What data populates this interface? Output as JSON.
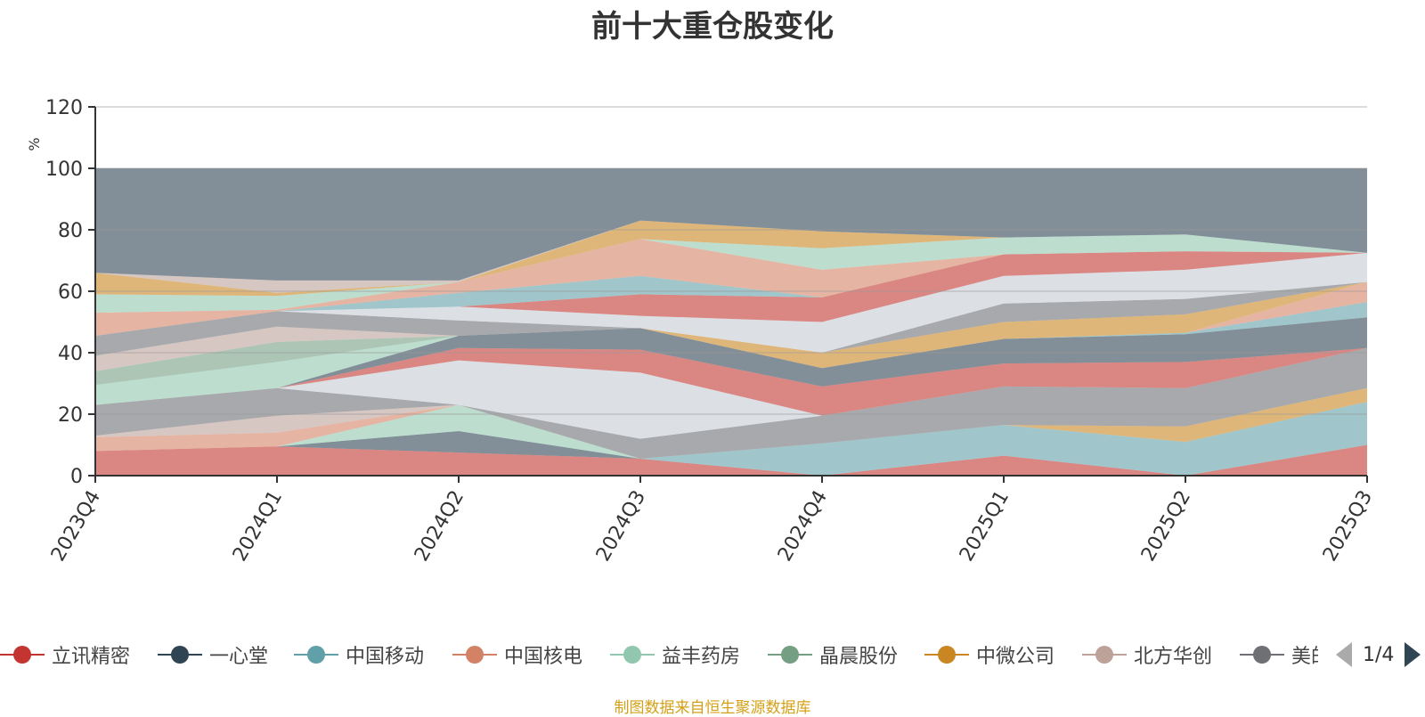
{
  "chart_data": {
    "type": "area",
    "title": "前十大重仓股变化",
    "ylabel": "%",
    "ylim": [
      0,
      120
    ],
    "yticks": [
      0,
      20,
      40,
      60,
      80,
      100,
      120
    ],
    "x": [
      "2023Q4",
      "2024Q1",
      "2024Q2",
      "2024Q3",
      "2024Q4",
      "2025Q1",
      "2025Q2",
      "2025Q3"
    ],
    "stacked": true,
    "grid": true,
    "legend_position": "bottom",
    "bands": [
      {
        "color": "#c23531",
        "bounds": [
          [
            0,
            8
          ],
          [
            0,
            9.5
          ],
          [
            0,
            7.5
          ],
          [
            0,
            5.5
          ],
          [
            0,
            0
          ],
          [
            0,
            6.5
          ],
          [
            0,
            0
          ],
          [
            0,
            10
          ]
        ]
      },
      {
        "color": "#61a0a8",
        "bounds": [
          [
            8,
            8
          ],
          [
            9.5,
            9.5
          ],
          [
            7.5,
            7.5
          ],
          [
            5.5,
            5.5
          ],
          [
            0,
            10.5
          ],
          [
            6.5,
            16.5
          ],
          [
            0,
            11
          ],
          [
            10,
            24
          ]
        ]
      },
      {
        "color": "#ca8622",
        "bounds": [
          [
            8,
            8
          ],
          [
            9.5,
            9.5
          ],
          [
            7.5,
            7.5
          ],
          [
            5.5,
            5.5
          ],
          [
            10.5,
            10.5
          ],
          [
            16.5,
            16.5
          ],
          [
            11,
            16
          ],
          [
            24,
            28.5
          ]
        ]
      },
      {
        "color": "#2f4554",
        "bounds": [
          [
            8,
            8
          ],
          [
            9.5,
            9.5
          ],
          [
            7.5,
            14.5
          ],
          [
            5.5,
            5.5
          ],
          [
            10.5,
            10.5
          ],
          [
            16.5,
            16.5
          ],
          [
            16,
            16
          ],
          [
            28.5,
            28.5
          ]
        ]
      },
      {
        "color": "#91c7ae",
        "bounds": [
          [
            8,
            8
          ],
          [
            9.5,
            9.5
          ],
          [
            14.5,
            23
          ],
          [
            5.5,
            5.5
          ],
          [
            10.5,
            10.5
          ],
          [
            16.5,
            16.5
          ],
          [
            16,
            16
          ],
          [
            28.5,
            28.5
          ]
        ]
      },
      {
        "color": "#d48265",
        "bounds": [
          [
            8,
            12.5
          ],
          [
            9.5,
            14
          ],
          [
            23,
            23
          ],
          [
            5.5,
            5.5
          ],
          [
            10.5,
            10.5
          ],
          [
            16.5,
            16.5
          ],
          [
            16,
            16
          ],
          [
            28.5,
            28.5
          ]
        ]
      },
      {
        "color": "#bda29a",
        "bounds": [
          [
            12.5,
            13
          ],
          [
            14,
            19.5
          ],
          [
            23,
            23
          ],
          [
            5.5,
            5.5
          ],
          [
            10.5,
            10.5
          ],
          [
            16.5,
            16.5
          ],
          [
            16,
            16
          ],
          [
            28.5,
            28.5
          ]
        ]
      },
      {
        "color": "#6e7074",
        "bounds": [
          [
            13,
            23
          ],
          [
            19.5,
            28.5
          ],
          [
            23,
            23
          ],
          [
            5.5,
            12
          ],
          [
            10.5,
            19.5
          ],
          [
            16.5,
            29
          ],
          [
            16,
            28.5
          ],
          [
            28.5,
            41.5
          ]
        ]
      },
      {
        "color": "#c4ccd3",
        "bounds": [
          [
            23,
            23
          ],
          [
            28.5,
            28.5
          ],
          [
            23,
            37.5
          ],
          [
            12,
            33.5
          ],
          [
            19.5,
            19.5
          ],
          [
            29,
            29
          ],
          [
            28.5,
            28.5
          ],
          [
            41.5,
            41.5
          ]
        ]
      },
      {
        "color": "#c23531",
        "bounds": [
          [
            23,
            23
          ],
          [
            28.5,
            28.5
          ],
          [
            37.5,
            41.5
          ],
          [
            33.5,
            41
          ],
          [
            19.5,
            29
          ],
          [
            29,
            36.5
          ],
          [
            28.5,
            37
          ],
          [
            41.5,
            41.5
          ]
        ]
      },
      {
        "color": "#2f4554",
        "bounds": [
          [
            23,
            23
          ],
          [
            28.5,
            28.5
          ],
          [
            41.5,
            45.5
          ],
          [
            41,
            48
          ],
          [
            29,
            35
          ],
          [
            36.5,
            44.5
          ],
          [
            37,
            46
          ],
          [
            41.5,
            51.5
          ]
        ]
      },
      {
        "color": "#61a0a8",
        "bounds": [
          [
            23,
            23
          ],
          [
            28.5,
            28.5
          ],
          [
            45.5,
            45.5
          ],
          [
            48,
            48
          ],
          [
            35,
            35
          ],
          [
            44.5,
            44.5
          ],
          [
            46,
            46.5
          ],
          [
            51.5,
            56.5
          ]
        ]
      },
      {
        "color": "#d48265",
        "bounds": [
          [
            23,
            23
          ],
          [
            28.5,
            28.5
          ],
          [
            45.5,
            45.5
          ],
          [
            48,
            48
          ],
          [
            35,
            35
          ],
          [
            44.5,
            44.5
          ],
          [
            46.5,
            46.5
          ],
          [
            56.5,
            63
          ]
        ]
      },
      {
        "color": "#91c7ae",
        "bounds": [
          [
            23,
            29.5
          ],
          [
            28.5,
            37
          ],
          [
            45.5,
            45.5
          ],
          [
            48,
            48
          ],
          [
            35,
            35
          ],
          [
            44.5,
            44.5
          ],
          [
            46.5,
            46.5
          ],
          [
            63,
            63
          ]
        ]
      },
      {
        "color": "#749f83",
        "bounds": [
          [
            29.5,
            34
          ],
          [
            37,
            43.5
          ],
          [
            45.5,
            45.5
          ],
          [
            48,
            48
          ],
          [
            35,
            35
          ],
          [
            44.5,
            44.5
          ],
          [
            46.5,
            46.5
          ],
          [
            63,
            63
          ]
        ]
      },
      {
        "color": "#ca8622",
        "bounds": [
          [
            34,
            34
          ],
          [
            43.5,
            43.5
          ],
          [
            45.5,
            45.5
          ],
          [
            48,
            48
          ],
          [
            35,
            40
          ],
          [
            44.5,
            50
          ],
          [
            46.5,
            52.5
          ],
          [
            63,
            63
          ]
        ]
      },
      {
        "color": "#bda29a",
        "bounds": [
          [
            34,
            39
          ],
          [
            43.5,
            48.5
          ],
          [
            45.5,
            45.5
          ],
          [
            48,
            48
          ],
          [
            40,
            40
          ],
          [
            50,
            50
          ],
          [
            52.5,
            52.5
          ],
          [
            63,
            63
          ]
        ]
      },
      {
        "color": "#6e7074",
        "bounds": [
          [
            39,
            45.5
          ],
          [
            48.5,
            53.5
          ],
          [
            45.5,
            50.5
          ],
          [
            48,
            48
          ],
          [
            40,
            40
          ],
          [
            50,
            56
          ],
          [
            52.5,
            57.5
          ],
          [
            63,
            63
          ]
        ]
      },
      {
        "color": "#c4ccd3",
        "bounds": [
          [
            45.5,
            45.5
          ],
          [
            53.5,
            53.5
          ],
          [
            50.5,
            55
          ],
          [
            48,
            52
          ],
          [
            40,
            50
          ],
          [
            56,
            65
          ],
          [
            57.5,
            67
          ],
          [
            63,
            72.5
          ]
        ]
      },
      {
        "color": "#c23531",
        "bounds": [
          [
            45.5,
            45.5
          ],
          [
            53.5,
            53.5
          ],
          [
            55,
            55
          ],
          [
            52,
            59
          ],
          [
            50,
            58
          ],
          [
            65,
            72
          ],
          [
            67,
            73
          ],
          [
            72.5,
            72.5
          ]
        ]
      },
      {
        "color": "#61a0a8",
        "bounds": [
          [
            45.5,
            45.5
          ],
          [
            53.5,
            53.5
          ],
          [
            55,
            59.5
          ],
          [
            59,
            65
          ],
          [
            58,
            58
          ],
          [
            72,
            72
          ],
          [
            73,
            73
          ],
          [
            72.5,
            72.5
          ]
        ]
      },
      {
        "color": "#d48265",
        "bounds": [
          [
            45.5,
            53
          ],
          [
            53.5,
            54
          ],
          [
            59.5,
            63
          ],
          [
            65,
            77
          ],
          [
            58,
            67
          ],
          [
            72,
            72
          ],
          [
            73,
            73
          ],
          [
            72.5,
            72.5
          ]
        ]
      },
      {
        "color": "#91c7ae",
        "bounds": [
          [
            53,
            59
          ],
          [
            54,
            58.5
          ],
          [
            63,
            63
          ],
          [
            77,
            77
          ],
          [
            67,
            74
          ],
          [
            72,
            77.5
          ],
          [
            73,
            78.5
          ],
          [
            72.5,
            72.5
          ]
        ]
      },
      {
        "color": "#ca8622",
        "bounds": [
          [
            59,
            66
          ],
          [
            58.5,
            59.5
          ],
          [
            63,
            63
          ],
          [
            77,
            83
          ],
          [
            74,
            79.5
          ],
          [
            77.5,
            77.5
          ],
          [
            78.5,
            78.5
          ],
          [
            72.5,
            72.5
          ]
        ]
      },
      {
        "color": "#bda29a",
        "bounds": [
          [
            66,
            66
          ],
          [
            59.5,
            63.5
          ],
          [
            63,
            63.5
          ],
          [
            83,
            83
          ],
          [
            79.5,
            79.5
          ],
          [
            77.5,
            77.5
          ],
          [
            78.5,
            78.5
          ],
          [
            72.5,
            72.5
          ]
        ]
      },
      {
        "color": "#2f4554",
        "bounds": [
          [
            66,
            100
          ],
          [
            63.5,
            100
          ],
          [
            63.5,
            100
          ],
          [
            83,
            100
          ],
          [
            79.5,
            100
          ],
          [
            77.5,
            100
          ],
          [
            78.5,
            100
          ],
          [
            72.5,
            100
          ]
        ]
      }
    ],
    "legend": [
      {
        "name": "立讯精密",
        "color": "#c23531"
      },
      {
        "name": "一心堂",
        "color": "#2f4554"
      },
      {
        "name": "中国移动",
        "color": "#61a0a8"
      },
      {
        "name": "中国核电",
        "color": "#d48265"
      },
      {
        "name": "益丰药房",
        "color": "#91c7ae"
      },
      {
        "name": "晶晨股份",
        "color": "#749f83"
      },
      {
        "name": "中微公司",
        "color": "#ca8622"
      },
      {
        "name": "北方华创",
        "color": "#bda29a"
      },
      {
        "name": "美的集团",
        "color": "#6e7074"
      }
    ],
    "legend_page": "1/4",
    "source_note": "制图数据来自恒生聚源数据库"
  }
}
